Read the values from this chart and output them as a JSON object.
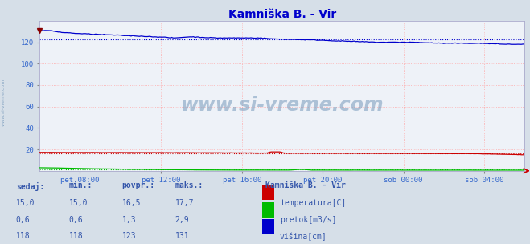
{
  "title": "Kamniška B. - Vir",
  "bg_color": "#d6dfe8",
  "plot_bg_color": "#eef2f8",
  "grid_color": "#ffaaaa",
  "title_color": "#0000cc",
  "tick_color": "#3366cc",
  "watermark": "www.si-vreme.com",
  "xtick_labels": [
    "pet 08:00",
    "pet 12:00",
    "pet 16:00",
    "pet 20:00",
    "sob 00:00",
    "sob 04:00"
  ],
  "xtick_positions": [
    0.083,
    0.25,
    0.417,
    0.583,
    0.75,
    0.917
  ],
  "ylim": [
    0,
    140
  ],
  "yticks": [
    20,
    40,
    60,
    80,
    100,
    120
  ],
  "temp_color": "#cc0000",
  "pretok_color": "#00bb00",
  "visina_color": "#0000cc",
  "temp_avg": 16.5,
  "pretok_avg": 1.3,
  "visina_avg": 123,
  "legend_title": "Kamniška B. - Vir",
  "legend_items": [
    "temperatura[C]",
    "pretok[m3/s]",
    "višina[cm]"
  ],
  "legend_colors": [
    "#cc0000",
    "#00bb00",
    "#0000cc"
  ],
  "table_headers": [
    "sedaj:",
    "min.:",
    "povpr.:",
    "maks.:"
  ],
  "table_data": [
    [
      "15,0",
      "15,0",
      "16,5",
      "17,7"
    ],
    [
      "0,6",
      "0,6",
      "1,3",
      "2,9"
    ],
    [
      "118",
      "118",
      "123",
      "131"
    ]
  ],
  "n_points": 288
}
